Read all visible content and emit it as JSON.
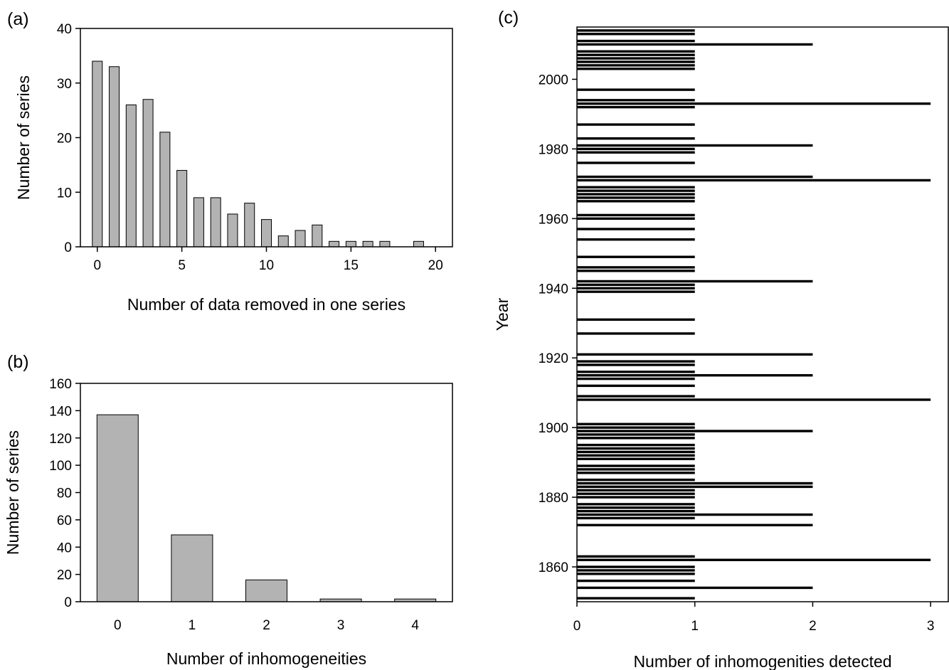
{
  "chart_data": [
    {
      "panel": "(a)",
      "type": "bar",
      "xlabel": "Number of data removed in one series",
      "ylabel": "Number of series",
      "xlim": [
        -1,
        21
      ],
      "ylim": [
        0,
        40
      ],
      "xticks": [
        0,
        5,
        10,
        15,
        20
      ],
      "yticks": [
        0,
        10,
        20,
        30,
        40
      ],
      "bar_color": "#b3b3b3",
      "x": [
        0,
        1,
        2,
        3,
        4,
        5,
        6,
        7,
        8,
        9,
        10,
        11,
        12,
        13,
        14,
        15,
        16,
        17,
        19
      ],
      "values": [
        34,
        33,
        26,
        27,
        21,
        14,
        9,
        9,
        6,
        8,
        5,
        2,
        3,
        4,
        1,
        1,
        1,
        1,
        1
      ]
    },
    {
      "panel": "(b)",
      "type": "bar",
      "xlabel": "Number of inhomogeneities",
      "ylabel": "Number of series",
      "xlim": [
        -0.5,
        4.5
      ],
      "ylim": [
        0,
        160
      ],
      "yticks": [
        0,
        20,
        40,
        60,
        80,
        100,
        120,
        140,
        160
      ],
      "bar_color": "#b3b3b3",
      "categories": [
        "0",
        "1",
        "2",
        "3",
        "4"
      ],
      "values": [
        137,
        49,
        16,
        2,
        2
      ]
    },
    {
      "panel": "(c)",
      "type": "bar",
      "orientation": "horizontal",
      "xlabel": "Number of inhomogenities detected",
      "ylabel": "Year",
      "xlim": [
        0,
        3.15
      ],
      "ylim": [
        1850,
        2015
      ],
      "xticks": [
        0,
        1,
        2,
        3
      ],
      "yticks": [
        1860,
        1880,
        1900,
        1920,
        1940,
        1960,
        1980,
        2000
      ],
      "bar_color": "#000000",
      "years": [
        1851,
        1854,
        1856,
        1858,
        1859,
        1860,
        1862,
        1863,
        1872,
        1874,
        1875,
        1876,
        1877,
        1878,
        1880,
        1881,
        1882,
        1883,
        1884,
        1885,
        1887,
        1888,
        1889,
        1891,
        1892,
        1893,
        1894,
        1895,
        1897,
        1898,
        1899,
        1900,
        1901,
        1908,
        1909,
        1912,
        1914,
        1915,
        1916,
        1918,
        1919,
        1921,
        1927,
        1931,
        1939,
        1940,
        1941,
        1942,
        1945,
        1946,
        1949,
        1954,
        1957,
        1960,
        1961,
        1965,
        1966,
        1967,
        1968,
        1969,
        1971,
        1972,
        1976,
        1979,
        1980,
        1981,
        1983,
        1987,
        1992,
        1993,
        1994,
        1997,
        2003,
        2004,
        2005,
        2006,
        2007,
        2008,
        2010,
        2011,
        2013,
        2014
      ],
      "counts": [
        1,
        2,
        1,
        1,
        1,
        1,
        3,
        1,
        2,
        1,
        2,
        1,
        1,
        1,
        1,
        1,
        1,
        2,
        2,
        1,
        1,
        1,
        1,
        1,
        1,
        1,
        1,
        1,
        1,
        1,
        2,
        1,
        1,
        3,
        1,
        1,
        1,
        2,
        1,
        1,
        1,
        2,
        1,
        1,
        1,
        1,
        1,
        2,
        1,
        1,
        1,
        1,
        1,
        1,
        1,
        1,
        1,
        1,
        1,
        1,
        3,
        2,
        1,
        1,
        1,
        2,
        1,
        1,
        1,
        3,
        1,
        1,
        1,
        1,
        1,
        1,
        1,
        1,
        2,
        1,
        1,
        1
      ]
    }
  ]
}
